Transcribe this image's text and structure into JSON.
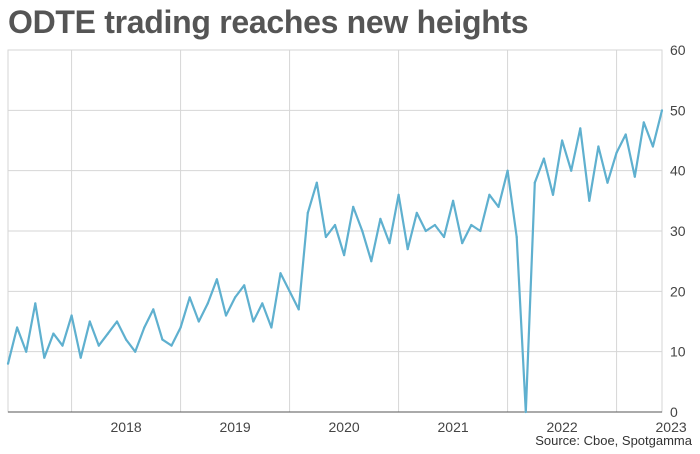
{
  "chart_data": {
    "type": "line",
    "title": "ODTE trading reaches new heights",
    "source": "Source: Cboe, Spotgamma",
    "ylim": [
      0,
      60
    ],
    "y_ticks": [
      "0",
      "10",
      "20",
      "30",
      "40",
      "50",
      "60"
    ],
    "y_axis_side": "right",
    "grid": true,
    "xlim": [
      "2017-06",
      "2023-06"
    ],
    "x_ticks": [
      "2018",
      "2019",
      "2020",
      "2021",
      "2022",
      "2023"
    ],
    "colors": {
      "line": "#5fb0cf",
      "grid": "#d6d6d6",
      "axis": "#555555"
    },
    "series": [
      {
        "x": [
          "2017-06",
          "2017-07",
          "2017-08",
          "2017-09",
          "2017-10",
          "2017-11",
          "2017-12",
          "2018-01",
          "2018-02",
          "2018-03",
          "2018-04",
          "2018-05",
          "2018-06",
          "2018-07",
          "2018-08",
          "2018-09",
          "2018-10",
          "2018-11",
          "2018-12",
          "2019-01",
          "2019-02",
          "2019-03",
          "2019-04",
          "2019-05",
          "2019-06",
          "2019-07",
          "2019-08",
          "2019-09",
          "2019-10",
          "2019-11",
          "2019-12",
          "2020-01",
          "2020-02",
          "2020-03",
          "2020-04",
          "2020-05",
          "2020-06",
          "2020-07",
          "2020-08",
          "2020-09",
          "2020-10",
          "2020-11",
          "2020-12",
          "2021-01",
          "2021-02",
          "2021-03",
          "2021-04",
          "2021-05",
          "2021-06",
          "2021-07",
          "2021-08",
          "2021-09",
          "2021-10",
          "2021-11",
          "2021-12",
          "2022-01",
          "2022-02",
          "2022-03",
          "2022-04",
          "2022-05",
          "2022-06",
          "2022-07",
          "2022-08",
          "2022-09",
          "2022-10",
          "2022-11",
          "2022-12",
          "2023-01",
          "2023-02",
          "2023-03",
          "2023-04",
          "2023-05",
          "2023-06"
        ],
        "values": [
          8,
          14,
          10,
          18,
          9,
          13,
          11,
          16,
          9,
          15,
          11,
          13,
          15,
          12,
          10,
          14,
          17,
          12,
          11,
          14,
          19,
          15,
          18,
          22,
          16,
          19,
          21,
          15,
          18,
          14,
          23,
          20,
          17,
          33,
          38,
          29,
          31,
          26,
          34,
          30,
          25,
          32,
          28,
          36,
          27,
          33,
          30,
          31,
          29,
          35,
          28,
          31,
          30,
          36,
          34,
          40,
          29,
          0,
          38,
          42,
          36,
          45,
          40,
          47,
          35,
          44,
          38,
          43,
          46,
          39,
          48,
          44,
          50
        ]
      }
    ]
  }
}
